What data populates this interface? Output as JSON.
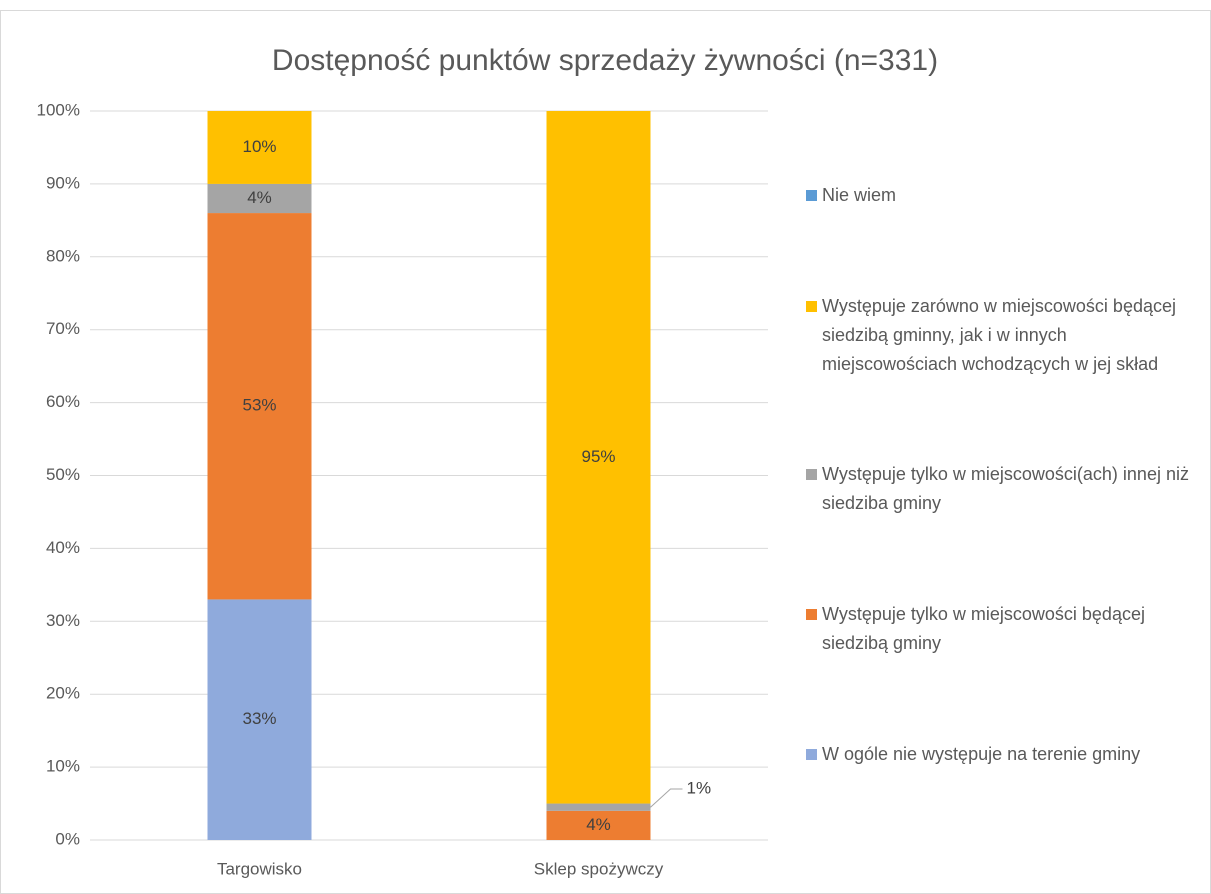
{
  "chart_data": {
    "type": "stacked_bar",
    "title": "Dostępność punktów sprzedaży żywności (n=331)",
    "categories": [
      "Targowisko",
      "Sklep spożywczy"
    ],
    "series": [
      {
        "name": "W ogóle nie występuje na terenie gminy",
        "color": "#8faadc",
        "values": [
          33,
          0
        ],
        "value_labels": [
          "33%",
          null
        ]
      },
      {
        "name": "Występuje tylko w miejscowości będącej siedzibą gminy",
        "color": "#ed7d31",
        "values": [
          53,
          4
        ],
        "value_labels": [
          "53%",
          "4%"
        ]
      },
      {
        "name": "Występuje tylko w miejscowości(ach) innej niż siedziba gminy",
        "color": "#a5a5a5",
        "values": [
          4,
          1
        ],
        "value_labels": [
          "4%",
          "1%"
        ]
      },
      {
        "name": "Występuje zarówno w miejscowości będącej siedzibą gminny, jak i w innych miejscowościach wchodzących w jej skład",
        "color": "#ffc000",
        "values": [
          10,
          95
        ],
        "value_labels": [
          "10%",
          "95%"
        ]
      },
      {
        "name": "Nie wiem",
        "color": "#5b9bd5",
        "values": [
          0,
          0
        ],
        "value_labels": [
          null,
          null
        ]
      }
    ],
    "ylim": [
      0,
      100
    ],
    "yticks": [
      {
        "value": 0,
        "label": "0%"
      },
      {
        "value": 10,
        "label": "10%"
      },
      {
        "value": 20,
        "label": "20%"
      },
      {
        "value": 30,
        "label": "30%"
      },
      {
        "value": 40,
        "label": "40%"
      },
      {
        "value": 50,
        "label": "50%"
      },
      {
        "value": 60,
        "label": "60%"
      },
      {
        "value": 70,
        "label": "70%"
      },
      {
        "value": 80,
        "label": "80%"
      },
      {
        "value": 90,
        "label": "90%"
      },
      {
        "value": 100,
        "label": "100%"
      }
    ],
    "grid": true,
    "legend": "right"
  }
}
